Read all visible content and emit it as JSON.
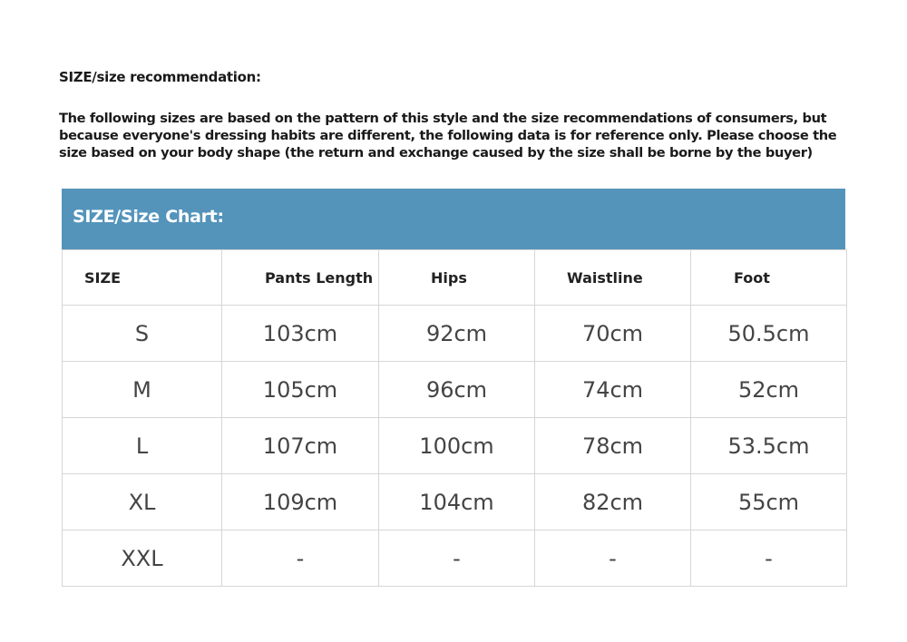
{
  "title": "SIZE/size recommendation:",
  "description": "The following sizes are based on the pattern of this style and the size recommendations of consumers, but because everyone's dressing habits are different, the following data is for reference only. Please choose the size based on your body shape (the return and exchange caused by the size shall be borne by the buyer)",
  "chart_title": "SIZE/Size Chart:",
  "colors": {
    "band": "#5494bb"
  },
  "headers": [
    "SIZE",
    "Pants Length",
    "Hips",
    "Waistline",
    "Foot"
  ],
  "rows": [
    [
      "S",
      "103cm",
      "92cm",
      "70cm",
      "50.5cm"
    ],
    [
      "M",
      "105cm",
      "96cm",
      "74cm",
      "52cm"
    ],
    [
      "L",
      "107cm",
      "100cm",
      "78cm",
      "53.5cm"
    ],
    [
      "XL",
      "109cm",
      "104cm",
      "82cm",
      "55cm"
    ],
    [
      "XXL",
      "-",
      "-",
      "-",
      "-"
    ]
  ]
}
